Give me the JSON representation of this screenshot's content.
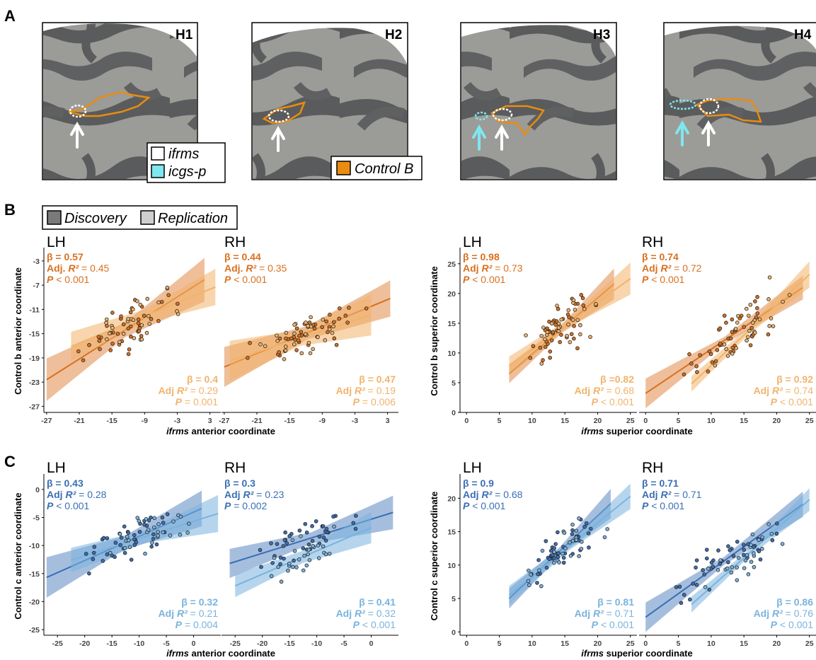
{
  "panel_labels": [
    "A",
    "B",
    "C"
  ],
  "panel_a": {
    "hemispheres": [
      "H1",
      "H2",
      "H3",
      "H4"
    ],
    "legend_sulci": [
      "ifrms",
      "icgs-p"
    ],
    "legend_network": "Control B",
    "colors": {
      "ifrms": "#ffffff",
      "icgs-p": "#7fe7ef",
      "network": "#e98c10"
    }
  },
  "legend_b": [
    "Discovery",
    "Replication"
  ],
  "colors": {
    "b_discovery": "#d9701f",
    "b_replication": "#f2b36a",
    "c_discovery": "#3a6fb5",
    "c_replication": "#7ab3de"
  },
  "chart_data": [
    {
      "id": "B-anterior",
      "type": "scatter",
      "ylabel": "Control b anterior coordinate",
      "xlabel_italic": "ifrms",
      "xlabel_rest": " anterior coordinate",
      "xticks": [
        -27,
        -21,
        -15,
        -9,
        -3,
        3
      ],
      "yticks": [
        -27,
        -23,
        -19,
        -15,
        -11,
        -7,
        -3
      ],
      "xlim": [
        -27.5,
        5
      ],
      "ylim": [
        -28,
        -1.5
      ],
      "panels": [
        {
          "hemi": "LH",
          "disc": {
            "beta": "β = 0.57",
            "r2_label": "Adj. R²",
            "r2": " = 0.45",
            "p_label": "P",
            "p": " < 0.001",
            "fit": [
              [
                -27,
                -22.6
              ],
              [
                2,
                -6.1
              ]
            ],
            "band_halfwidth": [
              3.5,
              1.2,
              3.6
            ]
          },
          "rep": {
            "beta": "β = 0.4",
            "r2_label": "Adj R²",
            "r2": " = 0.29",
            "p_label": "P",
            "p": " = 0.001",
            "fit": [
              [
                -22.5,
                -17.1
              ],
              [
                4,
                -7.3
              ]
            ],
            "band_halfwidth": [
              2.4,
              1.1,
              3.0
            ]
          }
        },
        {
          "hemi": "RH",
          "disc": {
            "beta": "β = 0.44",
            "r2_label": "Adj. R²",
            "r2": " = 0.35",
            "p_label": "P",
            "p": " < 0.001",
            "fit": [
              [
                -27,
                -20.5
              ],
              [
                3.5,
                -9.2
              ]
            ],
            "band_halfwidth": [
              3.3,
              1.1,
              3.0
            ]
          },
          "rep": {
            "beta": "β = 0.47",
            "r2_label": "Adj R²",
            "r2": " = 0.19",
            "p_label": "P",
            "p": " = 0.006",
            "fit": [
              [
                -26,
                -19.5
              ],
              [
                0,
                -11.9
              ]
            ],
            "band_halfwidth": [
              3.3,
              1.3,
              3.4
            ]
          }
        }
      ]
    },
    {
      "id": "B-superior",
      "type": "scatter",
      "ylabel": "Control b superior coordinate",
      "xlabel_italic": "ifrms",
      "xlabel_rest": " superior coordinate",
      "xticks": [
        0,
        5,
        10,
        15,
        20,
        25
      ],
      "yticks": [
        0,
        5,
        10,
        15,
        20,
        25
      ],
      "xlim": [
        -1,
        26
      ],
      "ylim": [
        0,
        27
      ],
      "panels": [
        {
          "hemi": "LH",
          "disc": {
            "beta": "β = 0.98",
            "r2_label": "Adj R²",
            "r2": " = 0.73",
            "p_label": "P",
            "p": " < 0.001",
            "fit": [
              [
                6.5,
                6.5
              ],
              [
                22.5,
                21.6
              ]
            ],
            "band_halfwidth": [
              1.6,
              0.7,
              2.6
            ]
          },
          "rep": {
            "beta": "β =0.82",
            "r2_label": "Adj R²",
            "r2": " = 0.68",
            "p_label": "P",
            "p": " < 0.001",
            "fit": [
              [
                6.5,
                7.8
              ],
              [
                25,
                22.5
              ]
            ],
            "band_halfwidth": [
              1.6,
              0.7,
              2.7
            ]
          }
        },
        {
          "hemi": "RH",
          "disc": {
            "beta": "β = 0.74",
            "r2_label": "Adj R²",
            "r2": " = 0.72",
            "p_label": "P",
            "p": " < 0.001",
            "fit": [
              [
                0,
                3.2
              ],
              [
                24,
                21.0
              ]
            ],
            "band_halfwidth": [
              2.5,
              0.6,
              2.0
            ]
          },
          "rep": {
            "beta": "β = 0.92",
            "r2_label": "Adj R²",
            "r2": " = 0.74",
            "p_label": "P",
            "p": " < 0.001",
            "fit": [
              [
                7,
                4.8
              ],
              [
                25,
                23.2
              ]
            ],
            "band_halfwidth": [
              1.3,
              0.6,
              2.2
            ]
          }
        }
      ]
    },
    {
      "id": "C-anterior",
      "type": "scatter",
      "ylabel": "Control c anterior coordinate",
      "xlabel_italic": "ifrms",
      "xlabel_rest": " anterior coordinate",
      "xticks": [
        -25,
        -20,
        -15,
        -10,
        -5,
        0
      ],
      "yticks": [
        -25,
        -20,
        -15,
        -10,
        -5,
        0
      ],
      "xlim": [
        -27.5,
        5
      ],
      "ylim": [
        -26,
        2
      ],
      "panels": [
        {
          "hemi": "LH",
          "disc": {
            "beta": "β = 0.43",
            "r2_label": "Adj R²",
            "r2": " = 0.28",
            "p_label": "P",
            "p": " < 0.001",
            "fit": [
              [
                -27,
                -15.7
              ],
              [
                1.5,
                -3.4
              ]
            ],
            "band_halfwidth": [
              3.6,
              1.2,
              3.2
            ]
          },
          "rep": {
            "beta": "β = 0.32",
            "r2_label": "Adj R²",
            "r2": " = 0.21",
            "p_label": "P",
            "p": " = 0.004",
            "fit": [
              [
                -22.5,
                -12.6
              ],
              [
                4.5,
                -4.3
              ]
            ],
            "band_halfwidth": [
              2.2,
              1.1,
              3.3
            ]
          }
        },
        {
          "hemi": "RH",
          "disc": {
            "beta": "β = 0.3",
            "r2_label": "Adj R²",
            "r2": " = 0.23",
            "p_label": "P",
            "p": " = 0.002",
            "fit": [
              [
                -26,
                -13.2
              ],
              [
                4,
                -4.1
              ]
            ],
            "band_halfwidth": [
              2.6,
              1.0,
              3.0
            ]
          },
          "rep": {
            "beta": "β = 0.41",
            "r2_label": "Adj R²",
            "r2": " = 0.32",
            "p_label": "P",
            "p": " < 0.001",
            "fit": [
              [
                -25,
                -17.2
              ],
              [
                0,
                -6.8
              ]
            ],
            "band_halfwidth": [
              2.0,
              1.1,
              2.8
            ]
          }
        }
      ]
    },
    {
      "id": "C-superior",
      "type": "scatter",
      "ylabel": "Control c superior coordinate",
      "xlabel_italic": "ifrms",
      "xlabel_rest": " superior coordinate",
      "xticks": [
        0,
        5,
        10,
        15,
        20,
        25
      ],
      "yticks": [
        0,
        5,
        10,
        15,
        20
      ],
      "xlim": [
        -1,
        26
      ],
      "ylim": [
        -0.5,
        23
      ],
      "panels": [
        {
          "hemi": "LH",
          "disc": {
            "beta": "β = 0.9",
            "r2_label": "Adj R²",
            "r2": " = 0.68",
            "p_label": "P",
            "p": " < 0.001",
            "fit": [
              [
                6.5,
                5.0
              ],
              [
                22,
                19.2
              ]
            ],
            "band_halfwidth": [
              1.5,
              0.6,
              2.2
            ]
          },
          "rep": {
            "beta": "β = 0.81",
            "r2_label": "Adj R²",
            "r2": " = 0.71",
            "p_label": "P",
            "p": " < 0.001",
            "fit": [
              [
                6.5,
                5.5
              ],
              [
                25,
                20.3
              ]
            ],
            "band_halfwidth": [
              1.4,
              0.6,
              1.9
            ]
          }
        },
        {
          "hemi": "RH",
          "disc": {
            "beta": "β = 0.71",
            "r2_label": "Adj R²",
            "r2": " = 0.71",
            "p_label": "P",
            "p": " < 0.001",
            "fit": [
              [
                0,
                2.2
              ],
              [
                24,
                19.1
              ]
            ],
            "band_halfwidth": [
              2.2,
              0.6,
              1.9
            ]
          },
          "rep": {
            "beta": "β = 0.86",
            "r2_label": "Adj R²",
            "r2": " = 0.76",
            "p_label": "P",
            "p": " < 0.001",
            "fit": [
              [
                7,
                4.1
              ],
              [
                25,
                19.8
              ]
            ],
            "band_halfwidth": [
              1.2,
              0.5,
              1.7
            ]
          }
        }
      ]
    }
  ]
}
